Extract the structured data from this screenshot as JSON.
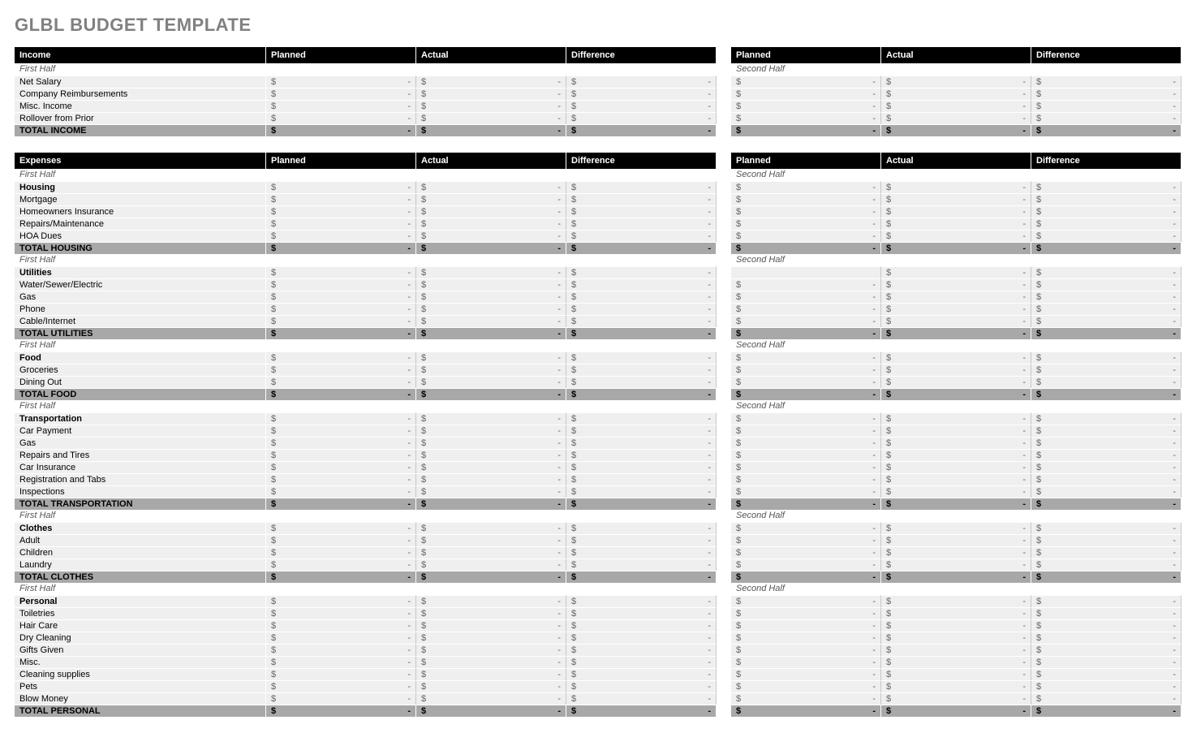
{
  "title": "GLBL BUDGET TEMPLATE",
  "columns": {
    "name_income": "Income",
    "name_expenses": "Expenses",
    "planned": "Planned",
    "actual": "Actual",
    "difference": "Difference"
  },
  "period_labels": {
    "first": "First Half",
    "second": "Second Half"
  },
  "currency_symbol": "$",
  "placeholder_value": "-",
  "colors": {
    "header_bg": "#000000",
    "header_fg": "#ffffff",
    "row_bg": "#efefef",
    "total_bg": "#a8a8a8",
    "title_color": "#808080",
    "cell_border": "#c8c8c8"
  },
  "income": {
    "rows": [
      {
        "label": "Net Salary"
      },
      {
        "label": "Company Reimbursements"
      },
      {
        "label": "Misc. Income"
      },
      {
        "label": "Rollover from Prior"
      }
    ],
    "total_label": "TOTAL INCOME"
  },
  "expenses": {
    "groups": [
      {
        "category": "Housing",
        "rows": [
          {
            "label": "Mortgage"
          },
          {
            "label": "Homeowners Insurance"
          },
          {
            "label": "Repairs/Maintenance"
          },
          {
            "label": "HOA Dues"
          }
        ],
        "total_label": "TOTAL HOUSING"
      },
      {
        "category": "Utilities",
        "rows": [
          {
            "label": "Water/Sewer/Electric"
          },
          {
            "label": "Gas"
          },
          {
            "label": "Phone"
          },
          {
            "label": "Cable/Internet"
          }
        ],
        "total_label": "TOTAL UTILITIES"
      },
      {
        "category": "Food",
        "rows": [
          {
            "label": "Groceries"
          },
          {
            "label": "Dining Out"
          }
        ],
        "total_label": "TOTAL FOOD"
      },
      {
        "category": "Transportation",
        "rows": [
          {
            "label": "Car Payment"
          },
          {
            "label": "Gas"
          },
          {
            "label": "Repairs and Tires"
          },
          {
            "label": "Car Insurance"
          },
          {
            "label": "Registration and Tabs"
          },
          {
            "label": "Inspections"
          }
        ],
        "total_label": "TOTAL TRANSPORTATION"
      },
      {
        "category": "Clothes",
        "rows": [
          {
            "label": "Adult"
          },
          {
            "label": "Children"
          },
          {
            "label": "Laundry"
          }
        ],
        "total_label": "TOTAL CLOTHES"
      },
      {
        "category": "Personal",
        "rows": [
          {
            "label": "Toiletries"
          },
          {
            "label": "Hair Care"
          },
          {
            "label": "Dry Cleaning"
          },
          {
            "label": "Gifts Given"
          },
          {
            "label": "Misc."
          },
          {
            "label": "Cleaning supplies"
          },
          {
            "label": "Pets"
          },
          {
            "label": "Blow Money"
          }
        ],
        "total_label": "TOTAL PERSONAL"
      }
    ]
  }
}
